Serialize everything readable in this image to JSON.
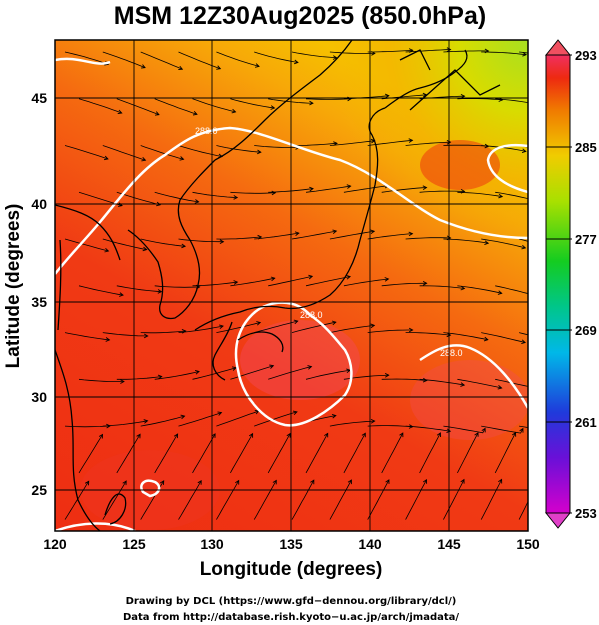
{
  "title": "MSM 12Z30Aug2025 (850.0hPa)",
  "x_axis": {
    "label": "Longitude (degrees)",
    "range": [
      120,
      150
    ],
    "ticks": [
      "120",
      "125",
      "130",
      "135",
      "140",
      "145",
      "150"
    ]
  },
  "y_axis": {
    "label": "Latitude  (degrees)",
    "range": [
      22.5,
      47.8
    ],
    "ticks": [
      "25",
      "30",
      "35",
      "40",
      "45"
    ]
  },
  "colorbar": {
    "range": [
      253,
      293
    ],
    "ticks": [
      "293",
      "285",
      "277",
      "269",
      "261",
      "253"
    ],
    "colors": [
      "#d400cc",
      "#2b2bd8",
      "#00b0f0",
      "#00c070",
      "#20d400",
      "#b8e000",
      "#f0c000",
      "#f07000",
      "#ee2a10",
      "#f03060"
    ]
  },
  "contour_label": "288.0",
  "credits": {
    "line1": "Drawing by DCL (https://www.gfd−dennou.org/library/dcl/)",
    "line2": "Data from http://database.rish.kyoto−u.ac.jp/arch/jmadata/"
  }
}
